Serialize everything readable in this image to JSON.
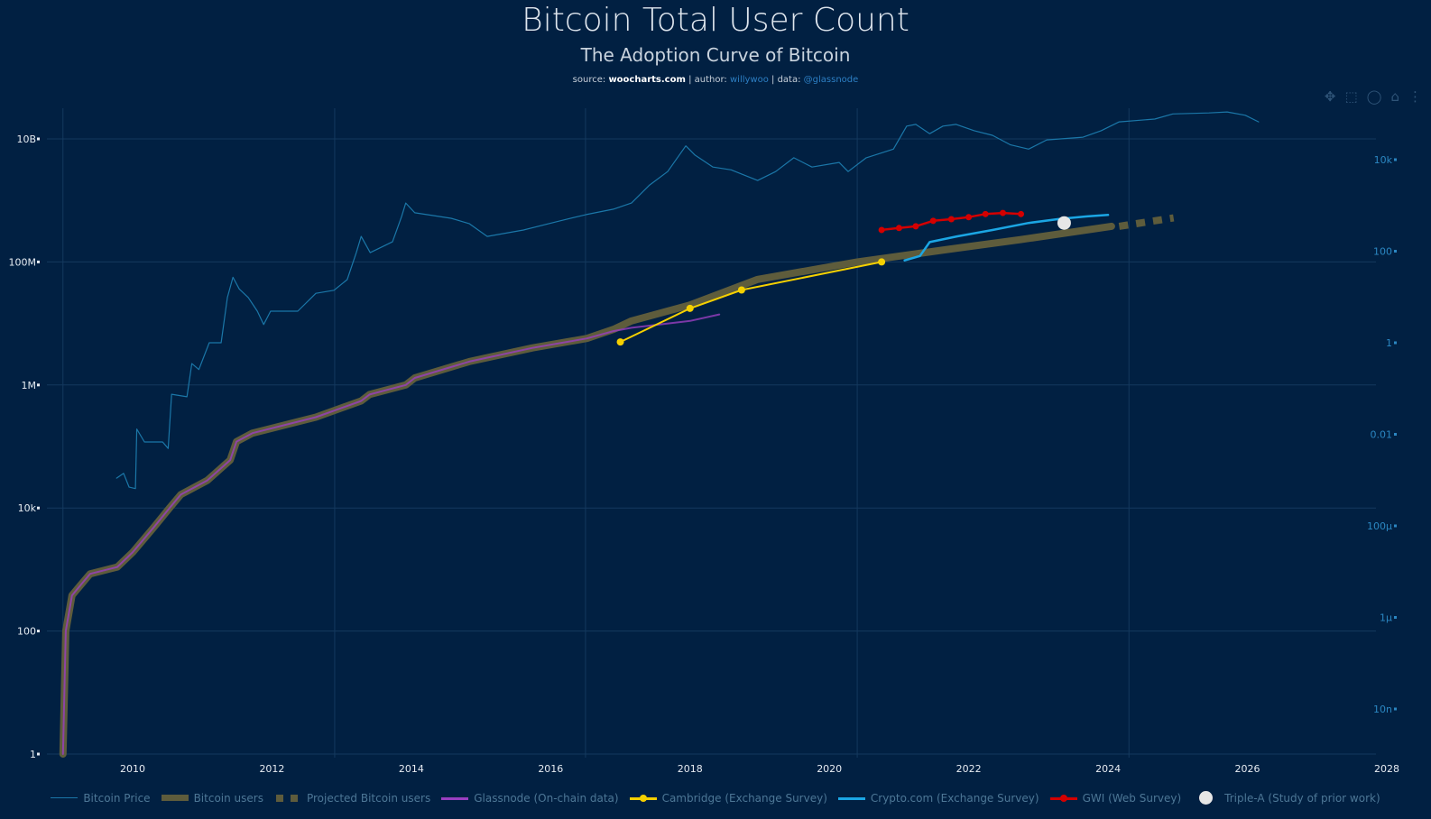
{
  "header": {
    "title": "Bitcoin Total User Count",
    "subtitle": "The Adoption Curve of Bitcoin",
    "credits": {
      "source_label": "source:",
      "source": "woocharts.com",
      "author_label": "author:",
      "author": "willywoo",
      "data_label": "data:",
      "data": "@glassnode"
    }
  },
  "toolbar": {
    "icons": [
      "pan-icon",
      "box-select-icon",
      "lasso-icon",
      "home-icon",
      "hover-icon"
    ]
  },
  "chart_data": {
    "type": "line",
    "title": "Bitcoin Total User Count",
    "subtitle": "The Adoption Curve of Bitcoin",
    "x_axis": {
      "type": "date",
      "range": [
        2008.9,
        2028
      ],
      "tick_labels": [
        "2010",
        "2012",
        "2014",
        "2016",
        "2018",
        "2020",
        "2022",
        "2024",
        "2026",
        "2028"
      ]
    },
    "y_axis_left": {
      "type": "log",
      "range": [
        1,
        30000000000
      ],
      "tick_labels": [
        "1",
        "100",
        "10k",
        "1M",
        "100M",
        "10B"
      ],
      "tick_values": [
        1,
        100,
        10000,
        1000000,
        100000000,
        10000000000
      ]
    },
    "y_axis_right": {
      "type": "log",
      "range": [
        1e-09,
        130000
      ],
      "tick_labels": [
        "10n",
        "1µ",
        "100µ",
        "0.01",
        "1",
        "100",
        "10k"
      ],
      "tick_values": [
        1e-08,
        1e-06,
        0.0001,
        0.01,
        1,
        100,
        10000
      ]
    },
    "grid": true,
    "legend_placement": "bottom",
    "background": "#012042",
    "series": [
      {
        "name": "Bitcoin Price",
        "axis": "right",
        "color": "#1b77a8",
        "style": "line",
        "x": [
          2009.77,
          2009.87,
          2009.95,
          2010.04,
          2010.06,
          2010.17,
          2010.43,
          2010.51,
          2010.56,
          2010.78,
          2010.85,
          2010.95,
          2011.1,
          2011.27,
          2011.36,
          2011.44,
          2011.53,
          2011.66,
          2011.79,
          2011.88,
          2011.98,
          2012.37,
          2012.63,
          2012.89,
          2013.08,
          2013.21,
          2013.28,
          2013.41,
          2013.73,
          2013.86,
          2013.92,
          2014.05,
          2014.57,
          2014.83,
          2015.09,
          2015.61,
          2016.13,
          2016.51,
          2016.9,
          2017.16,
          2017.42,
          2017.68,
          2017.94,
          2018.07,
          2018.33,
          2018.59,
          2018.97,
          2019.23,
          2019.49,
          2019.75,
          2020.14,
          2020.27,
          2020.53,
          2020.92,
          2021.11,
          2021.24,
          2021.44,
          2021.63,
          2021.82,
          2022.08,
          2022.34,
          2022.6,
          2022.86,
          2023.12,
          2023.64,
          2023.9,
          2024.16,
          2024.67,
          2024.93,
          2025.45,
          2025.71,
          2025.97,
          2026.16
        ],
        "y": [
          0.0011,
          0.0014,
          0.0007,
          0.00065,
          0.013,
          0.0068,
          0.0068,
          0.0049,
          0.075,
          0.066,
          0.35,
          0.26,
          1,
          1,
          9.7,
          27,
          15,
          9.7,
          4.9,
          2.5,
          4.9,
          4.9,
          12,
          14,
          24,
          93,
          210,
          93,
          160,
          570,
          1130,
          690,
          525,
          400,
          210,
          290,
          460,
          630,
          830,
          1130,
          2800,
          5500,
          20000,
          12600,
          6900,
          6000,
          3500,
          5500,
          11000,
          6900,
          8700,
          5500,
          11000,
          17000,
          54000,
          59000,
          37000,
          54000,
          59000,
          43000,
          34000,
          21000,
          17000,
          27000,
          31000,
          43000,
          67000,
          77000,
          100000,
          105000,
          110000,
          93000,
          67000
        ]
      },
      {
        "name": "Bitcoin users",
        "axis": "left",
        "color": "#5e5c3c",
        "style": "thick-line",
        "x": [
          2009.0,
          2009.04,
          2009.13,
          2009.26,
          2009.39,
          2009.78,
          2010.0,
          2010.3,
          2010.53,
          2010.69,
          2011.07,
          2011.4,
          2011.49,
          2011.72,
          2012.63,
          2013.28,
          2013.4,
          2013.92,
          2014.05,
          2014.83,
          2015.74,
          2016.52,
          2016.9,
          2017.16,
          2018.0,
          2018.97,
          2020.4,
          2021.7,
          2022.74,
          2024.05
        ],
        "y": [
          1,
          100,
          380,
          570,
          850,
          1100,
          1900,
          4800,
          10000,
          16500,
          28000,
          60000,
          120000,
          165000,
          300000,
          550000,
          700000,
          1000000,
          1300000,
          2400000,
          4000000,
          5700000,
          8000000,
          11000000,
          20000000,
          52000000,
          100000000,
          160000000,
          230000000,
          380000000
        ]
      },
      {
        "name": "Projected Bitcoin users",
        "axis": "left",
        "color": "#5e5c3c",
        "style": "dashed",
        "x": [
          2024.16,
          2024.94
        ],
        "y": [
          380000000,
          520000000
        ]
      },
      {
        "name": "Glassnode (On-chain data)",
        "axis": "left",
        "color": "#9a3fc0",
        "style": "line",
        "x": [
          2009.0,
          2009.04,
          2009.13,
          2009.26,
          2009.39,
          2009.78,
          2010.0,
          2010.3,
          2010.53,
          2010.69,
          2011.07,
          2011.4,
          2011.49,
          2011.72,
          2012.63,
          2013.28,
          2013.4,
          2013.92,
          2014.05,
          2014.83,
          2015.74,
          2016.52,
          2016.9,
          2017.16,
          2018.0,
          2018.42
        ],
        "y": [
          1,
          100,
          380,
          570,
          850,
          1100,
          1900,
          4800,
          10000,
          16500,
          28000,
          60000,
          120000,
          165000,
          300000,
          550000,
          700000,
          1000000,
          1300000,
          2400000,
          4000000,
          5700000,
          7500000,
          8500000,
          11000000,
          14000000
        ]
      },
      {
        "name": "Cambridge (Exchange Survey)",
        "axis": "left",
        "color": "#f5d000",
        "style": "line-markers",
        "x": [
          2017.0,
          2018.0,
          2018.74,
          2020.75
        ],
        "y": [
          5000000,
          17600000,
          35000000,
          100000000
        ]
      },
      {
        "name": "Crypto.com (Exchange Survey)",
        "axis": "left",
        "color": "#1ba6e4",
        "style": "line",
        "x": [
          2021.08,
          2021.3,
          2021.44,
          2021.83,
          2022.34,
          2022.86,
          2023.3,
          2023.7,
          2024.0
        ],
        "y": [
          106000000,
          125000000,
          210000000,
          260000000,
          330000000,
          430000000,
          500000000,
          550000000,
          580000000
        ]
      },
      {
        "name": "GWI (Web Survey)",
        "axis": "left",
        "color": "#d40000",
        "style": "line-markers",
        "x": [
          2020.75,
          2021.0,
          2021.24,
          2021.49,
          2021.75,
          2022.0,
          2022.24,
          2022.49,
          2022.75
        ],
        "y": [
          331000000,
          356000000,
          380000000,
          466000000,
          495000000,
          535000000,
          600000000,
          626000000,
          600000000
        ]
      },
      {
        "name": "Triple-A (Study of prior work)",
        "axis": "left",
        "color": "#e6e6e6",
        "style": "marker",
        "x": [
          2023.37
        ],
        "y": [
          430000000
        ]
      }
    ]
  }
}
